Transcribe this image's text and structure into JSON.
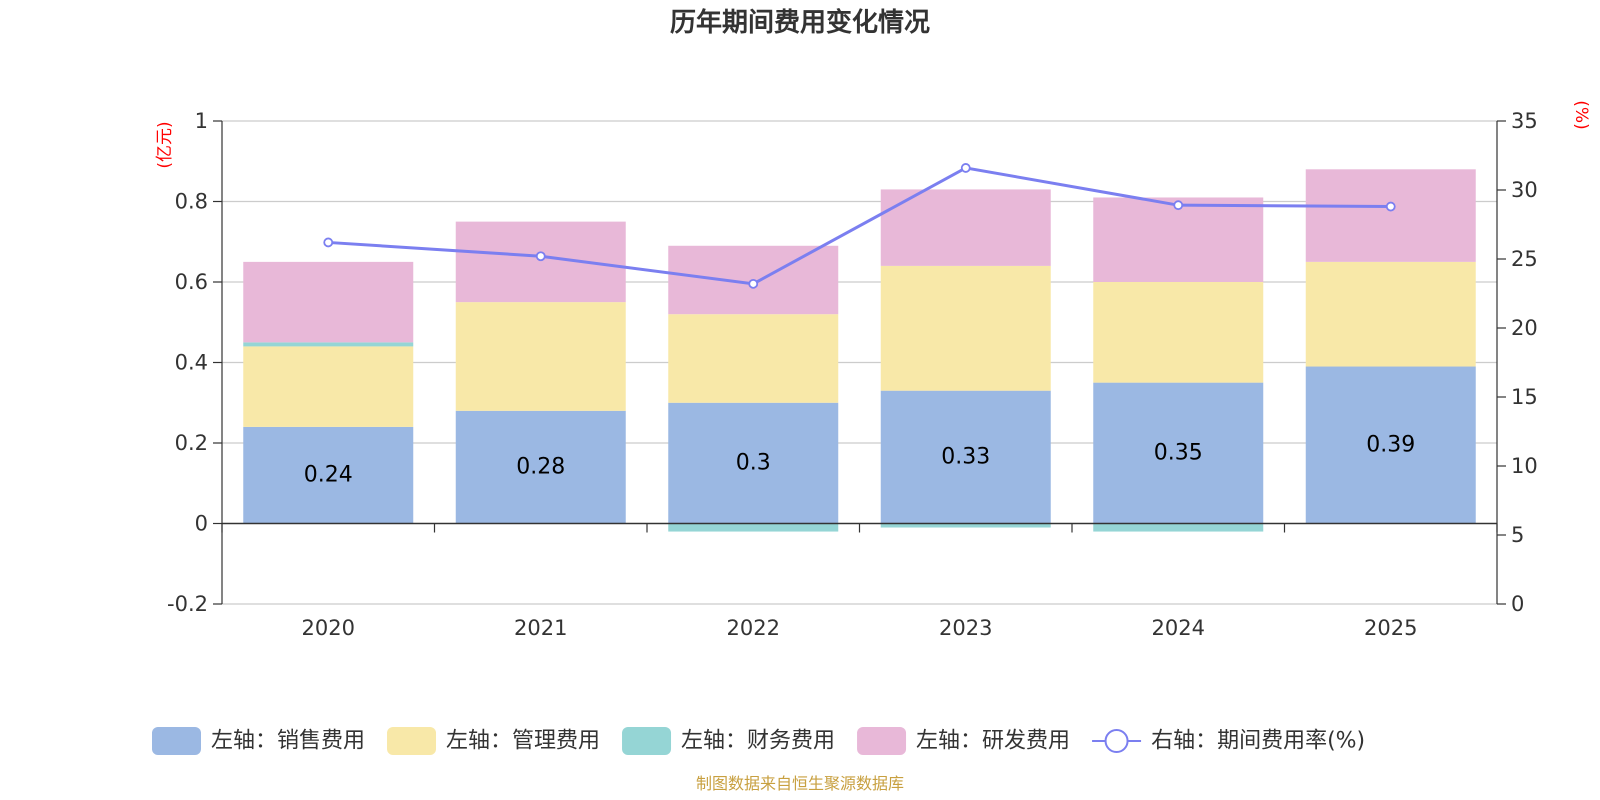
{
  "chart_data": {
    "type": "bar",
    "stacked": true,
    "title": "历年期间费用变化情况",
    "left_axis_unit": "(亿元)",
    "right_axis_unit": "(%)",
    "categories": [
      "2020",
      "2021",
      "2022",
      "2023",
      "2024",
      "2025"
    ],
    "left_axis": {
      "min": -0.2,
      "max": 1,
      "ticks": [
        "-0.2",
        "0",
        "0.2",
        "0.4",
        "0.6",
        "0.8",
        "1"
      ]
    },
    "right_axis": {
      "min": 0,
      "max": 35,
      "ticks": [
        "0",
        "5",
        "10",
        "15",
        "20",
        "25",
        "30",
        "35"
      ]
    },
    "series": [
      {
        "name": "左轴：销售费用",
        "axis": "left",
        "type": "bar",
        "color": "#9bb8e3",
        "values": [
          0.24,
          0.28,
          0.3,
          0.33,
          0.35,
          0.39
        ],
        "labels": [
          "0.24",
          "0.28",
          "0.3",
          "0.33",
          "0.35",
          "0.39"
        ]
      },
      {
        "name": "左轴：管理费用",
        "axis": "left",
        "type": "bar",
        "color": "#f8e8a8",
        "values": [
          0.2,
          0.27,
          0.22,
          0.31,
          0.25,
          0.26
        ]
      },
      {
        "name": "左轴：财务费用",
        "axis": "left",
        "type": "bar",
        "color": "#95d5d5",
        "values": [
          0.01,
          0.0,
          -0.02,
          -0.01,
          -0.02,
          0.0
        ]
      },
      {
        "name": "左轴：研发费用",
        "axis": "left",
        "type": "bar",
        "color": "#e8b8d8",
        "values": [
          0.2,
          0.2,
          0.17,
          0.19,
          0.21,
          0.23
        ]
      },
      {
        "name": "右轴：期间费用率(%)",
        "axis": "right",
        "type": "line",
        "color": "#7b7ff0",
        "values": [
          26.2,
          25.2,
          23.2,
          31.6,
          28.9,
          28.8
        ]
      }
    ],
    "source": "制图数据来自恒生聚源数据库"
  },
  "colors": {
    "grid": "#cccccc",
    "axis": "#333333",
    "unit": "#ff0000",
    "source": "#c8a040"
  }
}
